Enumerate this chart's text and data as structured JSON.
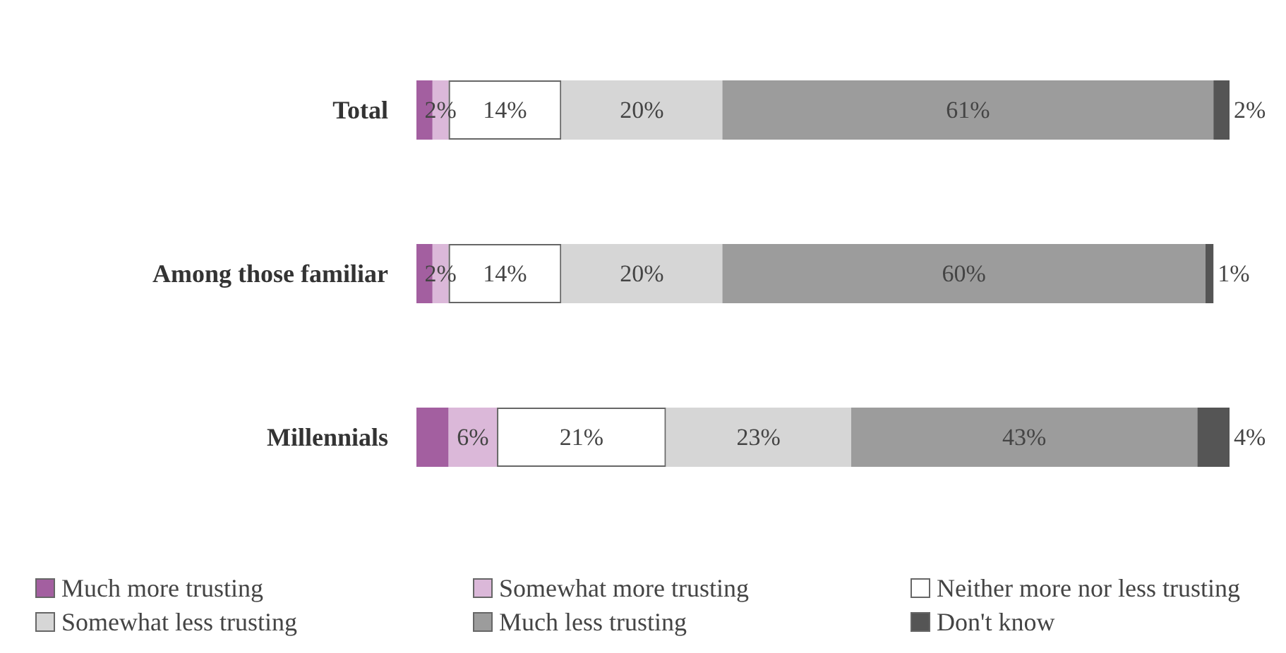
{
  "chart_data": {
    "type": "bar",
    "orientation": "horizontal",
    "stacked": true,
    "legend": "bottom",
    "categories": [
      "Total",
      "Among those familiar",
      "Millennials"
    ],
    "series": [
      {
        "name": "Much more trusting",
        "color": "#a35fa0",
        "values": [
          2,
          2,
          4
        ],
        "value_labels": [
          null,
          null,
          null
        ]
      },
      {
        "name": "Somewhat more trusting",
        "color": "#dbb8d9",
        "values": [
          2,
          2,
          6
        ],
        "value_labels": [
          "2%",
          "2%",
          "6%"
        ]
      },
      {
        "name": "Neither more nor less trusting",
        "color": "#ffffff",
        "values": [
          14,
          14,
          21
        ],
        "value_labels": [
          "14%",
          "14%",
          "21%"
        ]
      },
      {
        "name": "Somewhat less trusting",
        "color": "#d6d6d6",
        "values": [
          20,
          20,
          23
        ],
        "value_labels": [
          "20%",
          "20%",
          "23%"
        ]
      },
      {
        "name": "Much less trusting",
        "color": "#9c9c9c",
        "values": [
          61,
          60,
          43
        ],
        "value_labels": [
          "61%",
          "60%",
          "43%"
        ]
      },
      {
        "name": "Don't know",
        "color": "#555555",
        "values": [
          2,
          1,
          4
        ],
        "value_labels": [
          "2%",
          "1%",
          "4%"
        ]
      }
    ]
  }
}
